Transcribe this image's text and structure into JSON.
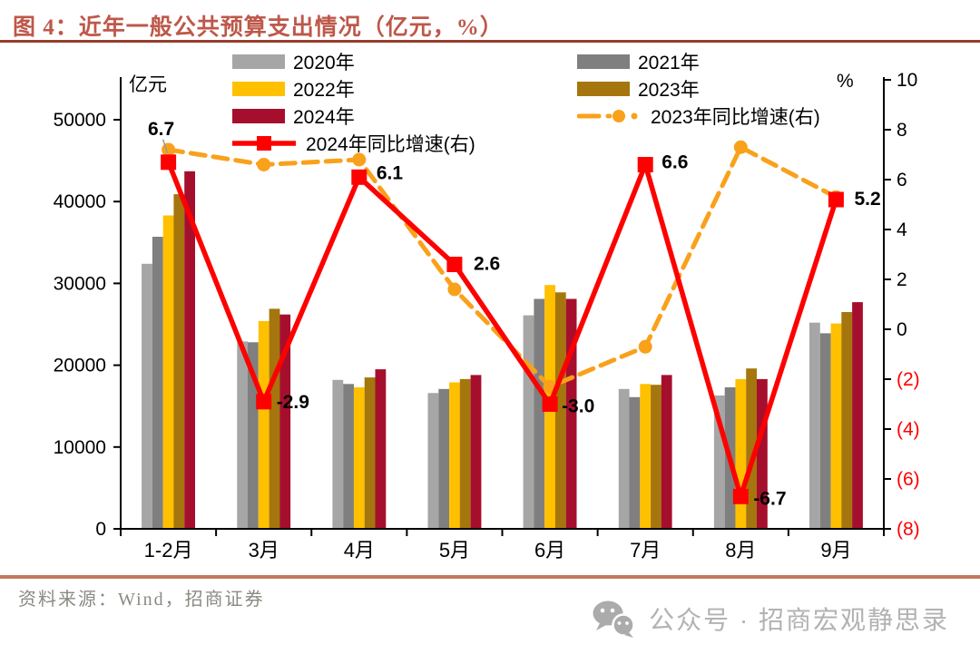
{
  "title": {
    "text": "图 4：近年一般公共预算支出情况（亿元，%）"
  },
  "colors": {
    "title": "#BE584A",
    "title_underline": "#963E2D",
    "source_divider": "#C47860",
    "source_text": "#8A8A84",
    "footer_text": "#B2B2B2",
    "axis": "#000000",
    "negative_tick": "#FF0000"
  },
  "chart_data": {
    "type": "bar+line",
    "title": "近年一般公共预算支出情况（亿元，%）",
    "categories": [
      "1-2月",
      "3月",
      "4月",
      "5月",
      "6月",
      "7月",
      "8月",
      "9月"
    ],
    "left_axis": {
      "label": "亿元",
      "min": 0,
      "max": 55000,
      "ticks": [
        {
          "value": 0,
          "label": "0"
        },
        {
          "value": 10000,
          "label": "10000"
        },
        {
          "value": 20000,
          "label": "20000"
        },
        {
          "value": 30000,
          "label": "30000"
        },
        {
          "value": 40000,
          "label": "40000"
        },
        {
          "value": 50000,
          "label": "50000"
        }
      ]
    },
    "right_axis": {
      "label": "%",
      "min": -8,
      "max": 10,
      "negative_color": "#FF0000",
      "ticks": [
        {
          "value": 10,
          "label": "10"
        },
        {
          "value": 8,
          "label": "8"
        },
        {
          "value": 6,
          "label": "6"
        },
        {
          "value": 4,
          "label": "4"
        },
        {
          "value": 2,
          "label": "2"
        },
        {
          "value": 0,
          "label": "0"
        },
        {
          "value": -2,
          "label": "(2)"
        },
        {
          "value": -4,
          "label": "(4)"
        },
        {
          "value": -6,
          "label": "(6)"
        },
        {
          "value": -8,
          "label": "(8)"
        }
      ]
    },
    "bar_series": [
      {
        "name": "2020年",
        "color": "#A6A6A6",
        "values": [
          32400,
          22900,
          18200,
          16600,
          26100,
          17100,
          16300,
          25200
        ]
      },
      {
        "name": "2021年",
        "color": "#7F7F7F",
        "values": [
          35700,
          22800,
          17700,
          17100,
          28100,
          16100,
          17300,
          23900
        ]
      },
      {
        "name": "2022年",
        "color": "#FFC000",
        "values": [
          38300,
          25400,
          17300,
          17900,
          29800,
          17700,
          18300,
          25100
        ]
      },
      {
        "name": "2023年",
        "color": "#A5760D",
        "values": [
          40900,
          26900,
          18500,
          18300,
          28900,
          17600,
          19600,
          26500
        ]
      },
      {
        "name": "2024年",
        "color": "#A50F2D",
        "values": [
          43700,
          26200,
          19500,
          18800,
          28100,
          18800,
          18300,
          27700
        ]
      }
    ],
    "line_series": [
      {
        "name": "2023年同比增速(右)",
        "color": "#F9A11B",
        "style": "dashed",
        "marker": "circle",
        "values": [
          7.2,
          6.6,
          6.8,
          1.6,
          -2.3,
          -0.7,
          7.3,
          5.3
        ]
      },
      {
        "name": "2024年同比增速(右)",
        "color": "#FF0000",
        "style": "solid",
        "marker": "square",
        "values": [
          6.7,
          -2.9,
          6.1,
          2.6,
          -3.0,
          6.6,
          -6.7,
          5.2
        ],
        "labels": [
          "6.7",
          "-2.9",
          "6.1",
          "2.6",
          "-3.0",
          "6.6",
          "-6.7",
          "5.2"
        ]
      }
    ]
  },
  "legend": {
    "items": [
      {
        "label": "2020年",
        "series": "2020年",
        "type": "bar",
        "col": 0,
        "row": 0
      },
      {
        "label": "2021年",
        "series": "2021年",
        "type": "bar",
        "col": 1,
        "row": 0
      },
      {
        "label": "2022年",
        "series": "2022年",
        "type": "bar",
        "col": 0,
        "row": 1
      },
      {
        "label": "2023年",
        "series": "2023年",
        "type": "bar",
        "col": 1,
        "row": 1
      },
      {
        "label": "2024年",
        "series": "2024年",
        "type": "bar",
        "col": 0,
        "row": 2
      },
      {
        "label": "2023年同比增速(右)",
        "series": "2023年同比增速(右)",
        "type": "line-dashed",
        "col": 1,
        "row": 2
      },
      {
        "label": "2024年同比增速(右)",
        "series": "2024年同比增速(右)",
        "type": "line-solid",
        "col": 0,
        "row": 3
      }
    ]
  },
  "source": {
    "text": "资料来源：Wind，招商证券"
  },
  "footer": {
    "label": "公众号 · 招商宏观静思录"
  }
}
